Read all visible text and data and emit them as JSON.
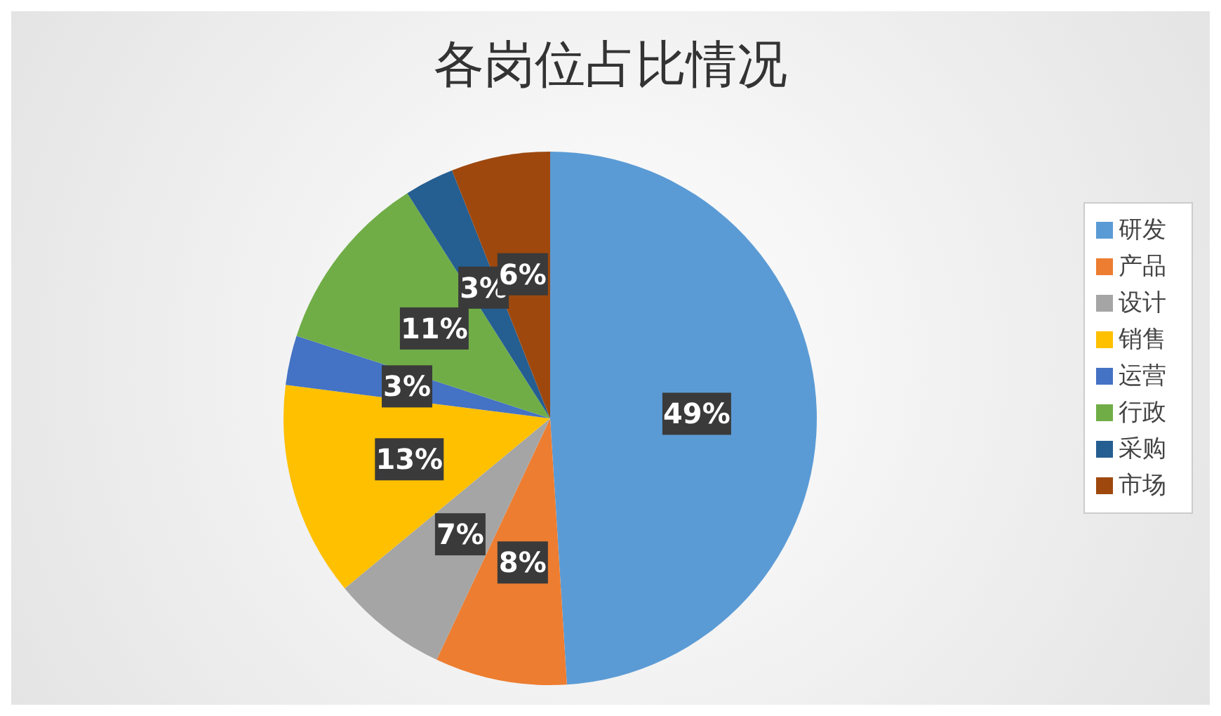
{
  "chart_data": {
    "type": "pie",
    "title": "各岗位占比情况",
    "categories": [
      "研发",
      "产品",
      "设计",
      "销售",
      "运营",
      "行政",
      "采购",
      "市场"
    ],
    "values": [
      49,
      8,
      7,
      13,
      3,
      11,
      3,
      6
    ],
    "value_labels": [
      "49%",
      "8%",
      "7%",
      "13%",
      "3%",
      "11%",
      "3%",
      "6%"
    ],
    "colors": [
      "#5b9bd5",
      "#ed7d31",
      "#a5a5a5",
      "#ffc000",
      "#4472c4",
      "#70ad47",
      "#255e91",
      "#9e480e"
    ],
    "legend": "right"
  }
}
